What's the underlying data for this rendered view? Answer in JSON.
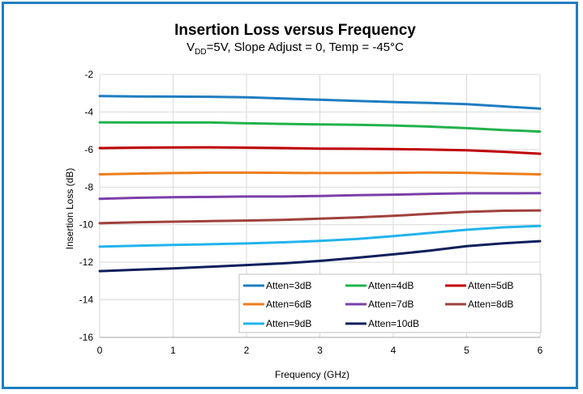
{
  "chart_data": {
    "type": "line",
    "title": "Insertion Loss versus Frequency",
    "subtitle": {
      "prefix": "V",
      "subscript": "DD",
      "rest": "=5V, Slope Adjust = 0, Temp = -45°C"
    },
    "xlabel": "Frequency (GHz)",
    "ylabel": "Insertion Loss (dB)",
    "xlim": [
      0,
      6
    ],
    "ylim": [
      -16,
      -2
    ],
    "xticks": [
      "0",
      "1",
      "2",
      "3",
      "4",
      "5",
      "6"
    ],
    "yticks": [
      "-2",
      "-4",
      "-6",
      "-8",
      "-10",
      "-12",
      "-14",
      "-16"
    ],
    "grid": true,
    "legend_position": "bottom-right",
    "x": [
      0,
      0.5,
      1,
      1.5,
      2,
      2.5,
      3,
      3.5,
      4,
      4.5,
      5,
      5.5,
      6
    ],
    "series": [
      {
        "name": "Atten=3dB",
        "color": "#1f7dc0",
        "values": [
          -3.15,
          -3.17,
          -3.18,
          -3.19,
          -3.22,
          -3.28,
          -3.35,
          -3.41,
          -3.47,
          -3.52,
          -3.58,
          -3.7,
          -3.82
        ]
      },
      {
        "name": "Atten=4dB",
        "color": "#22b24c",
        "values": [
          -4.55,
          -4.56,
          -4.56,
          -4.56,
          -4.6,
          -4.63,
          -4.66,
          -4.68,
          -4.72,
          -4.78,
          -4.86,
          -4.96,
          -5.04
        ]
      },
      {
        "name": "Atten=5dB",
        "color": "#c00000",
        "values": [
          -5.92,
          -5.9,
          -5.89,
          -5.88,
          -5.9,
          -5.92,
          -5.95,
          -5.96,
          -5.97,
          -6.0,
          -6.04,
          -6.12,
          -6.22
        ]
      },
      {
        "name": "Atten=6dB",
        "color": "#ee7d1a",
        "values": [
          -7.32,
          -7.28,
          -7.25,
          -7.23,
          -7.23,
          -7.24,
          -7.25,
          -7.25,
          -7.24,
          -7.22,
          -7.24,
          -7.28,
          -7.32
        ]
      },
      {
        "name": "Atten=7dB",
        "color": "#7b3fa9",
        "values": [
          -8.62,
          -8.57,
          -8.54,
          -8.52,
          -8.5,
          -8.5,
          -8.47,
          -8.43,
          -8.4,
          -8.36,
          -8.33,
          -8.33,
          -8.32
        ]
      },
      {
        "name": "Atten=8dB",
        "color": "#a0413d",
        "values": [
          -9.92,
          -9.87,
          -9.84,
          -9.81,
          -9.78,
          -9.74,
          -9.68,
          -9.61,
          -9.53,
          -9.42,
          -9.32,
          -9.26,
          -9.24
        ]
      },
      {
        "name": "Atten=9dB",
        "color": "#22b4ec",
        "values": [
          -11.17,
          -11.12,
          -11.08,
          -11.04,
          -11.0,
          -10.94,
          -10.86,
          -10.76,
          -10.61,
          -10.44,
          -10.27,
          -10.14,
          -10.07
        ]
      },
      {
        "name": "Atten=10dB",
        "color": "#0e1f5c",
        "values": [
          -12.47,
          -12.4,
          -12.33,
          -12.24,
          -12.15,
          -12.06,
          -11.93,
          -11.76,
          -11.58,
          -11.38,
          -11.14,
          -10.99,
          -10.88
        ]
      }
    ]
  }
}
